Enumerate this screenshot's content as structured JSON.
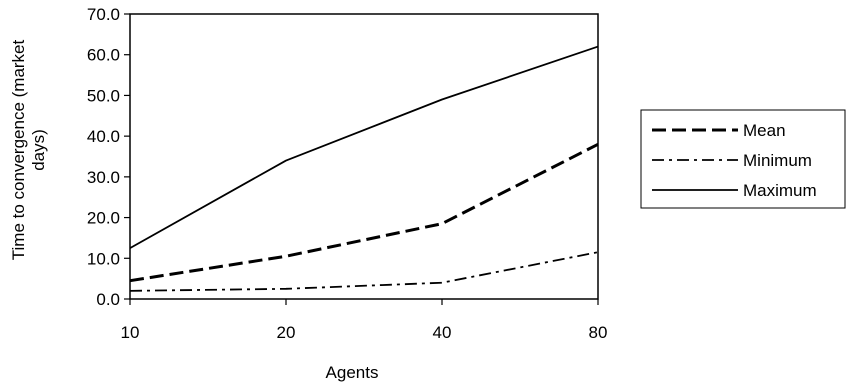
{
  "chart_data": {
    "type": "line",
    "x": [
      10,
      20,
      40,
      80
    ],
    "x_scale": "categorical-even",
    "xlabel": "Agents",
    "ylabel_lines": [
      "Time to convergence (market",
      "days)"
    ],
    "ylim": [
      0,
      70
    ],
    "yticks": [
      "0.0",
      "10.0",
      "20.0",
      "30.0",
      "40.0",
      "50.0",
      "60.0",
      "70.0"
    ],
    "grid": false,
    "legend_position": "right",
    "series": [
      {
        "name": "Mean",
        "style": "dashed",
        "values": [
          4.5,
          10.5,
          18.5,
          38
        ]
      },
      {
        "name": "Minimum",
        "style": "dash-dot",
        "values": [
          2.0,
          2.5,
          4.0,
          11.5
        ]
      },
      {
        "name": "Maximum",
        "style": "solid",
        "values": [
          12.5,
          34,
          49,
          62
        ]
      }
    ]
  }
}
